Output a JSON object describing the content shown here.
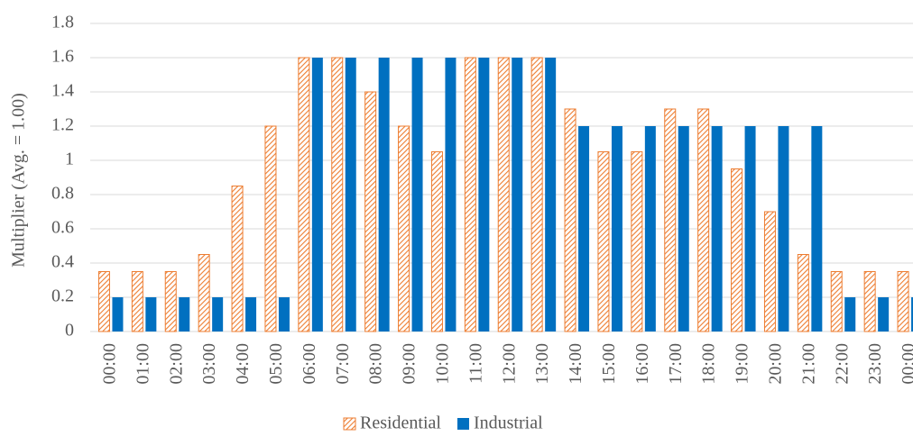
{
  "chart_data": {
    "type": "bar",
    "y_label": "Multiplier (Avg. = 1.00)",
    "categories": [
      "00:00",
      "01:00",
      "02:00",
      "03:00",
      "04:00",
      "05:00",
      "06:00",
      "07:00",
      "08:00",
      "09:00",
      "10:00",
      "11:00",
      "12:00",
      "13:00",
      "14:00",
      "15:00",
      "16:00",
      "17:00",
      "18:00",
      "19:00",
      "20:00",
      "21:00",
      "22:00",
      "23:00",
      "00:00"
    ],
    "series": [
      {
        "name": "Residential",
        "color": "#ed7d31",
        "hatch": true,
        "values": [
          0.35,
          0.35,
          0.35,
          0.45,
          0.85,
          1.2,
          1.6,
          1.6,
          1.4,
          1.2,
          1.05,
          1.6,
          1.6,
          1.6,
          1.3,
          1.05,
          1.05,
          1.3,
          1.3,
          0.95,
          0.7,
          0.45,
          0.35,
          0.35,
          0.35
        ]
      },
      {
        "name": "Industrial",
        "color": "#0070c0",
        "hatch": false,
        "values": [
          0.2,
          0.2,
          0.2,
          0.2,
          0.2,
          0.2,
          1.6,
          1.6,
          1.6,
          1.6,
          1.6,
          1.6,
          1.6,
          1.6,
          1.2,
          1.2,
          1.2,
          1.2,
          1.2,
          1.2,
          1.2,
          1.2,
          0.2,
          0.2,
          0.2
        ]
      }
    ],
    "ylim": [
      0,
      1.8
    ],
    "yticks": [
      0,
      0.2,
      0.4,
      0.6,
      0.8,
      1,
      1.2,
      1.4,
      1.6,
      1.8
    ],
    "grid": true,
    "legend": "bottom"
  }
}
